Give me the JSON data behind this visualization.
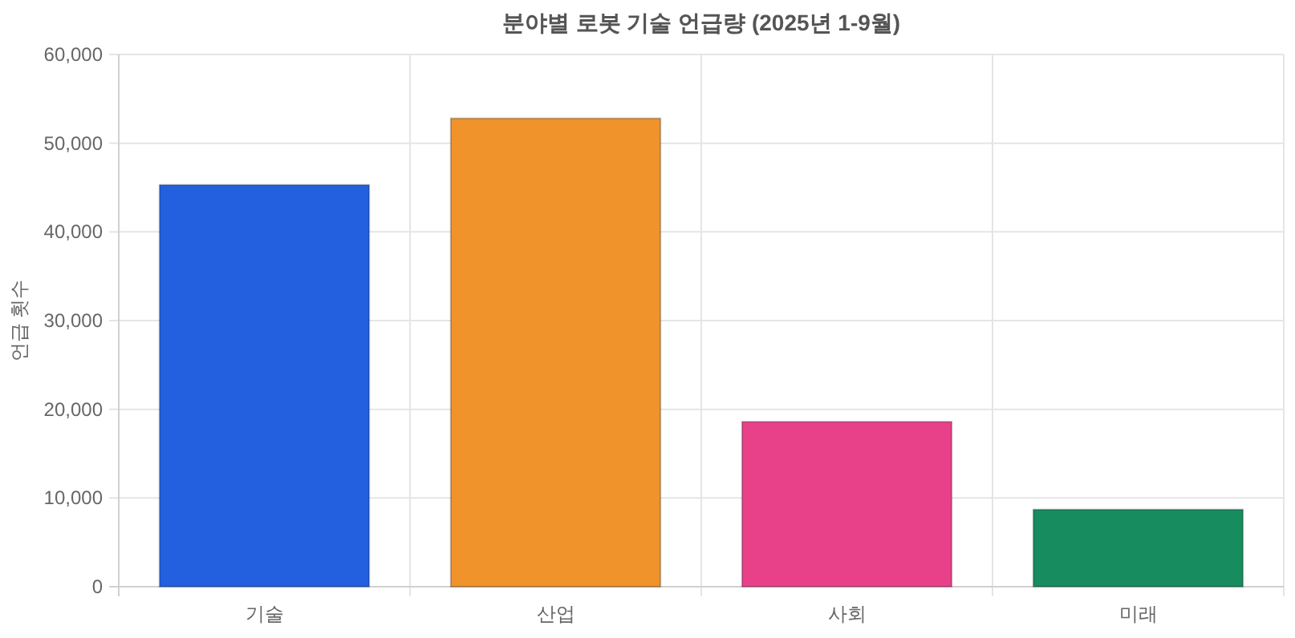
{
  "chart_data": {
    "type": "bar",
    "title": "분야별 로봇 기술 언급량 (2025년 1-9월)",
    "ylabel": "언급 횟수",
    "categories": [
      "기술",
      "산업",
      "사회",
      "미래"
    ],
    "values": [
      45300,
      52800,
      18600,
      8700
    ],
    "colors": [
      "#2260e0",
      "#f0932b",
      "#e8418a",
      "#178c5e"
    ],
    "ylim": [
      0,
      60000
    ],
    "yticks": [
      {
        "value": 0,
        "label": "0"
      },
      {
        "value": 10000,
        "label": "10,000"
      },
      {
        "value": 20000,
        "label": "20,000"
      },
      {
        "value": 30000,
        "label": "30,000"
      },
      {
        "value": 40000,
        "label": "40,000"
      },
      {
        "value": 50000,
        "label": "50,000"
      },
      {
        "value": 60000,
        "label": "60,000"
      }
    ],
    "grid": true
  }
}
